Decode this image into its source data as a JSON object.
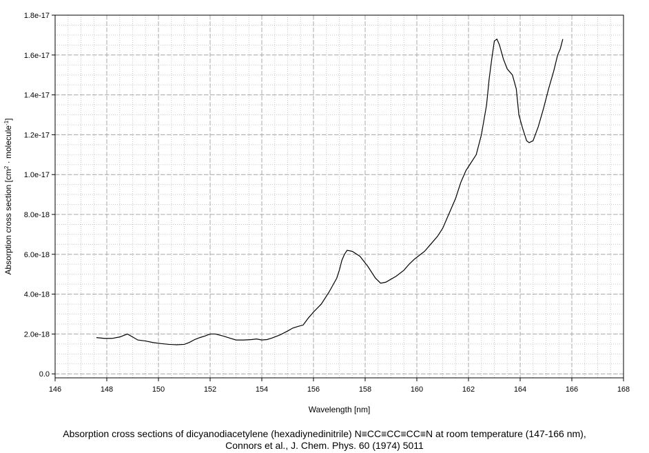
{
  "chart_data": {
    "type": "line",
    "xlabel": "Wavelength [nm]",
    "ylabel": {
      "prefix": "Absorption cross section [cm",
      "sup1": "2",
      "middle": " · molecule",
      "sup2": "-1",
      "suffix": "]"
    },
    "xlim": [
      146,
      168
    ],
    "ylim": [
      -2e-19,
      1.8e-17
    ],
    "x_ticks": [
      "146",
      "148",
      "150",
      "152",
      "154",
      "156",
      "158",
      "160",
      "162",
      "164",
      "166",
      "168"
    ],
    "y_ticks": [
      "0.0",
      "2.0e-18",
      "4.0e-18",
      "6.0e-18",
      "8.0e-18",
      "1.0e-17",
      "1.2e-17",
      "1.4e-17",
      "1.6e-17",
      "1.8e-17"
    ],
    "grid": true,
    "line_color": "#000000",
    "series": [
      {
        "x": [
          147.6,
          147.9,
          148.2,
          148.5,
          148.8,
          149.0,
          149.2,
          149.5,
          149.8,
          150.1,
          150.4,
          150.7,
          151.0,
          151.2,
          151.4,
          151.6,
          151.8,
          152.0,
          152.2,
          152.5,
          152.8,
          153.0,
          153.3,
          153.6,
          153.8,
          154.0,
          154.2,
          154.4,
          154.7,
          155.0,
          155.2,
          155.4,
          155.6,
          155.8,
          156.0,
          156.3,
          156.6,
          156.9,
          157.0,
          157.1,
          157.2,
          157.3,
          157.5,
          157.8,
          158.1,
          158.4,
          158.6,
          158.8,
          159.0,
          159.2,
          159.5,
          159.7,
          159.9,
          160.1,
          160.3,
          160.5,
          160.8,
          161.0,
          161.2,
          161.5,
          161.7,
          161.9,
          162.1,
          162.3,
          162.5,
          162.7,
          162.8,
          162.9,
          163.0,
          163.1,
          163.2,
          163.35,
          163.5,
          163.7,
          163.85,
          163.95,
          164.1,
          164.25,
          164.35,
          164.5,
          164.7,
          164.9,
          165.1,
          165.3,
          165.45,
          165.55,
          165.65
        ],
        "y": [
          1.82e-18,
          1.78e-18,
          1.78e-18,
          1.85e-18,
          2e-18,
          1.85e-18,
          1.7e-18,
          1.65e-18,
          1.57e-18,
          1.52e-18,
          1.48e-18,
          1.46e-18,
          1.48e-18,
          1.58e-18,
          1.72e-18,
          1.82e-18,
          1.9e-18,
          2e-18,
          2e-18,
          1.9e-18,
          1.78e-18,
          1.7e-18,
          1.7e-18,
          1.72e-18,
          1.75e-18,
          1.7e-18,
          1.72e-18,
          1.8e-18,
          1.95e-18,
          2.15e-18,
          2.3e-18,
          2.38e-18,
          2.45e-18,
          2.8e-18,
          3.1e-18,
          3.5e-18,
          4.1e-18,
          4.8e-18,
          5.2e-18,
          5.7e-18,
          6e-18,
          6.2e-18,
          6.15e-18,
          5.9e-18,
          5.4e-18,
          4.8e-18,
          4.55e-18,
          4.6e-18,
          4.75e-18,
          4.9e-18,
          5.2e-18,
          5.5e-18,
          5.75e-18,
          5.95e-18,
          6.15e-18,
          6.45e-18,
          6.9e-18,
          7.3e-18,
          7.9e-18,
          8.8e-18,
          9.6e-18,
          1.02e-17,
          1.06e-17,
          1.1e-17,
          1.2e-17,
          1.35e-17,
          1.48e-17,
          1.58e-17,
          1.67e-17,
          1.68e-17,
          1.65e-17,
          1.58e-17,
          1.53e-17,
          1.5e-17,
          1.43e-17,
          1.3e-17,
          1.23e-17,
          1.17e-17,
          1.16e-17,
          1.17e-17,
          1.24e-17,
          1.33e-17,
          1.43e-17,
          1.52e-17,
          1.6e-17,
          1.63e-17,
          1.68e-17
        ]
      }
    ]
  },
  "caption": {
    "line1": "Absorption cross sections of dicyanodiacetylene (hexadiynedinitrile) N≡CC≡CC≡CC≡N at room temperature (147-166 nm),",
    "line2": "Connors et al., J. Chem. Phys. 60  (1974) 5011"
  }
}
